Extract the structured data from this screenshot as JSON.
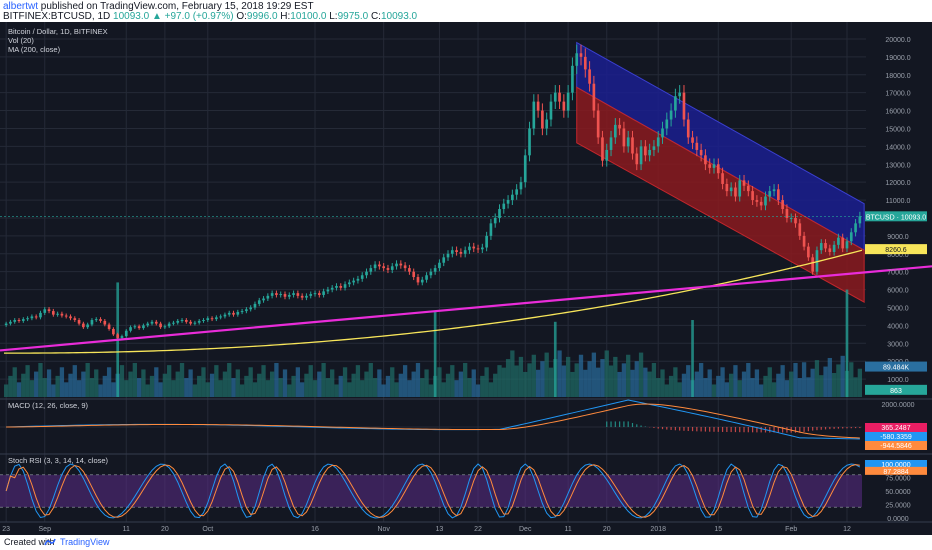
{
  "header": {
    "author": "albertwt",
    "published": " published on TradingView.com, February 15, 2018 19:29 EST",
    "symbol": "BITFINEX:BTCUSD, 1D",
    "change": "10093.0 ▲ +97.0 (+0.97%)",
    "o_label": "O:",
    "o_value": "9996.0",
    "h_label": "H:",
    "h_value": "10100.0",
    "l_label": "L:",
    "l_value": "9975.0",
    "c_label": "C:",
    "c_value": "10093.0"
  },
  "legend": {
    "title": "Bitcoin / Dollar, 1D, BITFINEX",
    "vol": "Vol (20)",
    "ma": "MA (200, close)",
    "macd": "MACD (12, 26, close, 9)",
    "rsi": "Stoch RSI (3, 3, 14, 14, close)"
  },
  "footer": {
    "created": "Created with",
    "brand": "TradingView"
  },
  "colors": {
    "background": "#131722",
    "up": "#26a69a",
    "down": "#ef5350",
    "ma": "#f7e55a",
    "trendline": "#e92cd9",
    "channel_upper": "#1b1f8f",
    "channel_lower": "#8b1a1f",
    "macd": "#2196f3",
    "signal": "#ff8a3d",
    "rsi_k": "#2196f3",
    "rsi_d": "#ff8a3d",
    "rsi_band": "#5b2b87"
  },
  "chart_data": {
    "type": "candlestick",
    "price_axis": {
      "min": 0,
      "max": 20500,
      "ticks": [
        1000,
        2000,
        3000,
        4000,
        5000,
        6000,
        7000,
        8000,
        9000,
        10000,
        11000,
        12000,
        13000,
        14000,
        15000,
        16000,
        17000,
        18000,
        19000,
        20000
      ]
    },
    "volume_axis_ticks": [
      {
        "v": "2000.0000",
        "y": 2000
      },
      {
        "v": "3000.0000",
        "y": 3000
      }
    ],
    "macd_axis_ticks": [
      "2000.0000"
    ],
    "rsi_axis_ticks": [
      "100.0000",
      "75.0000",
      "50.0000",
      "25.0000",
      "0.0000"
    ],
    "x_ticks": [
      {
        "i": 0,
        "label": "23"
      },
      {
        "i": 9,
        "label": "Sep"
      },
      {
        "i": 28,
        "label": "11"
      },
      {
        "i": 37,
        "label": "20"
      },
      {
        "i": 47,
        "label": "Oct"
      },
      {
        "i": 72,
        "label": "16"
      },
      {
        "i": 88,
        "label": "Nov"
      },
      {
        "i": 101,
        "label": "13"
      },
      {
        "i": 110,
        "label": "22"
      },
      {
        "i": 121,
        "label": "Dec"
      },
      {
        "i": 131,
        "label": "11"
      },
      {
        "i": 140,
        "label": "20"
      },
      {
        "i": 152,
        "label": "2018"
      },
      {
        "i": 166,
        "label": "15"
      },
      {
        "i": 183,
        "label": "Feb"
      },
      {
        "i": 196,
        "label": "12"
      }
    ],
    "closes": [
      4100,
      4200,
      4300,
      4250,
      4350,
      4400,
      4500,
      4450,
      4700,
      4900,
      4800,
      4600,
      4650,
      4550,
      4500,
      4400,
      4300,
      4100,
      3900,
      4050,
      4300,
      4350,
      4250,
      4050,
      3800,
      3500,
      3300,
      3400,
      3700,
      3900,
      3950,
      3850,
      4000,
      4100,
      4200,
      4100,
      3900,
      3950,
      4100,
      4150,
      4250,
      4300,
      4200,
      4100,
      4150,
      4250,
      4300,
      4400,
      4350,
      4450,
      4500,
      4600,
      4700,
      4600,
      4750,
      4800,
      4900,
      5000,
      5200,
      5400,
      5500,
      5650,
      5800,
      5700,
      5750,
      5600,
      5700,
      5800,
      5650,
      5550,
      5650,
      5750,
      5800,
      5700,
      5900,
      6000,
      6100,
      6200,
      6100,
      6300,
      6400,
      6500,
      6600,
      6800,
      7000,
      7200,
      7400,
      7300,
      7200,
      7100,
      7300,
      7450,
      7350,
      7200,
      7000,
      6700,
      6400,
      6550,
      6800,
      7000,
      7200,
      7500,
      7800,
      8000,
      8200,
      8100,
      8000,
      8200,
      8400,
      8300,
      8250,
      8350,
      9000,
      9700,
      10000,
      10500,
      10800,
      11000,
      11300,
      11600,
      12000,
      13500,
      15000,
      16500,
      16000,
      15000,
      15500,
      16500,
      17000,
      16500,
      16000,
      17000,
      18500,
      19200,
      19000,
      18300,
      17500,
      16000,
      14500,
      13200,
      13800,
      14500,
      15200,
      15000,
      14000,
      14500,
      13600,
      13000,
      14000,
      13500,
      13800,
      14000,
      14500,
      15000,
      15500,
      16000,
      16800,
      17000,
      15500,
      14500,
      14200,
      13800,
      13500,
      13000,
      12800,
      13000,
      12500,
      11900,
      11500,
      11700,
      11200,
      12100,
      11800,
      11500,
      11000,
      10900,
      10700,
      11200,
      11500,
      11600,
      11000,
      10500,
      10000,
      10000,
      9700,
      9000,
      8400,
      7800,
      7000,
      8200,
      8600,
      8300,
      8100,
      8500,
      8900,
      8300,
      8700,
      9200,
      9700,
      10093
    ],
    "volume_labels": [
      "89.484K",
      "863"
    ],
    "price_badges": {
      "last": "10093.0",
      "ma": "8260.6"
    },
    "macd_badges": [
      "365.2487",
      "-580.3359",
      "-944.5846"
    ],
    "rsi_badges": [
      "100.0000",
      "87.2884"
    ]
  }
}
